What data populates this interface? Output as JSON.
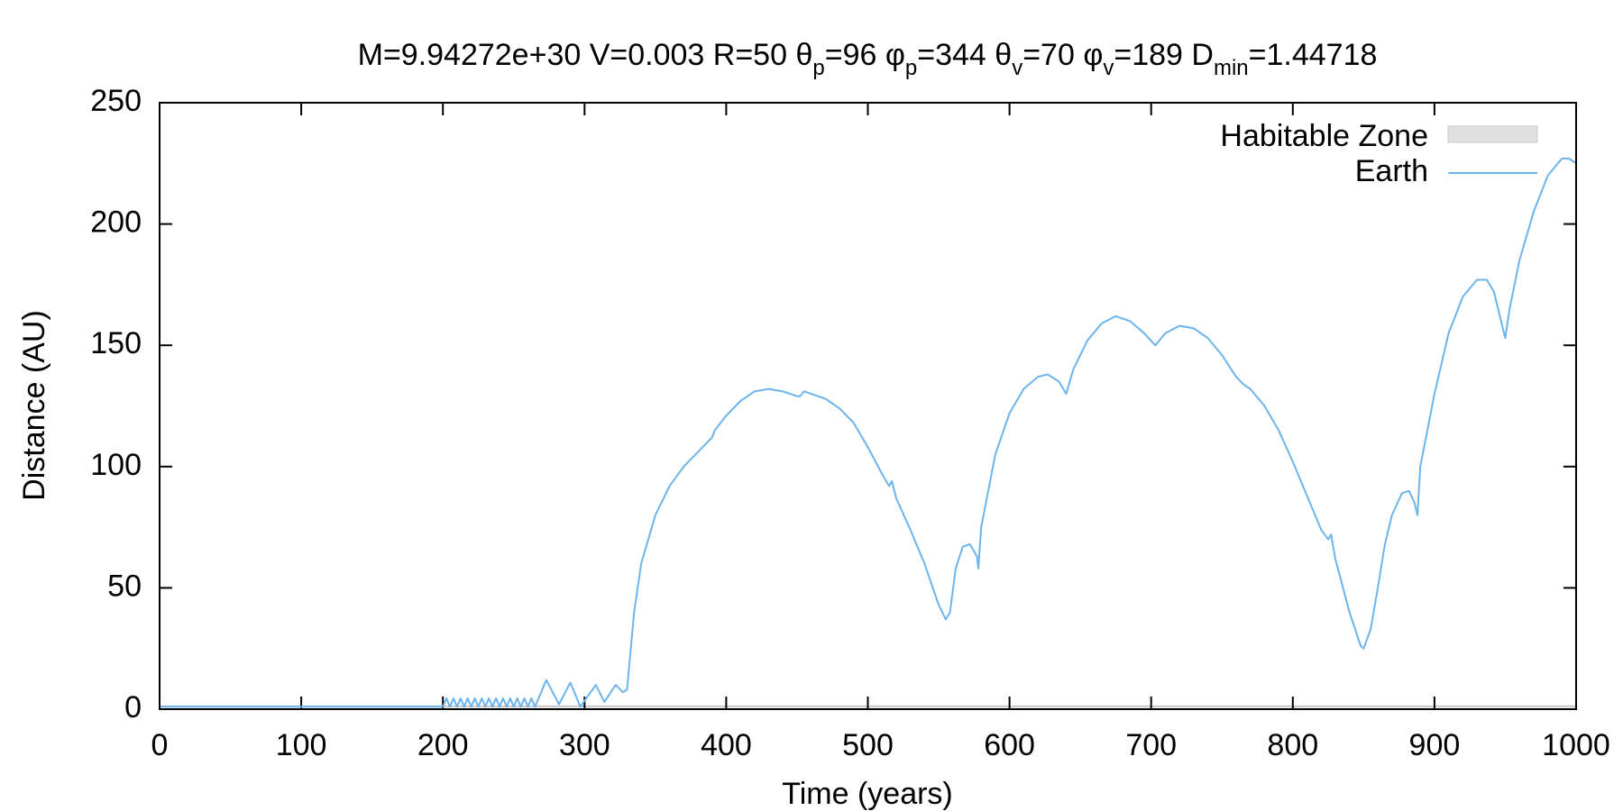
{
  "chart_data": {
    "type": "line",
    "title": [
      {
        "text": "M=9.94272e+30 V=0.003 R=50 θ"
      },
      {
        "text": "p",
        "sub": true
      },
      {
        "text": "=96 φ"
      },
      {
        "text": "p",
        "sub": true
      },
      {
        "text": "=344 θ"
      },
      {
        "text": "v",
        "sub": true
      },
      {
        "text": "=70 φ"
      },
      {
        "text": "v",
        "sub": true
      },
      {
        "text": "=189 D"
      },
      {
        "text": "min",
        "sub": true
      },
      {
        "text": "=1.44718"
      }
    ],
    "x_label": "Time (years)",
    "y_label": "Distance (AU)",
    "xlim": [
      0,
      1000
    ],
    "xticks": [
      0,
      100,
      200,
      300,
      400,
      500,
      600,
      700,
      800,
      900,
      1000
    ],
    "ylim": [
      0,
      250
    ],
    "yticks": [
      0,
      50,
      100,
      150,
      200,
      250
    ],
    "legend": "top-right",
    "band": {
      "name": "Habitable Zone",
      "color": "#e0e0e0",
      "range": [
        0.95,
        1.37
      ]
    },
    "series": [
      {
        "name": "Earth",
        "color": "#6cb4ee",
        "x": [
          0,
          100,
          200,
          202.5,
          205,
          207.5,
          210,
          212.5,
          215,
          217.5,
          220,
          222.5,
          225,
          227.5,
          230,
          232.5,
          235,
          237.5,
          240,
          242.5,
          245,
          247.5,
          250,
          252.5,
          255,
          257.5,
          260,
          262.5,
          265,
          273,
          282,
          290,
          297,
          308,
          314,
          322,
          327,
          330,
          335,
          340,
          350,
          360,
          370,
          380,
          390,
          392,
          400,
          410,
          420,
          430,
          440,
          450,
          452,
          455,
          460,
          470,
          480,
          490,
          500,
          510,
          515,
          517,
          520,
          530,
          540,
          550,
          555,
          558,
          562,
          567,
          572,
          577,
          578,
          580,
          590,
          600,
          610,
          620,
          627,
          635,
          640,
          645,
          655,
          665,
          675,
          685,
          695,
          703,
          710,
          720,
          730,
          740,
          750,
          760,
          765,
          770,
          780,
          790,
          800,
          810,
          820,
          825,
          827,
          830,
          840,
          848,
          850,
          855,
          860,
          865,
          870,
          877,
          882,
          886,
          888,
          890,
          900,
          910,
          920,
          930,
          937,
          942,
          947,
          950,
          953,
          960,
          970,
          980,
          990,
          995,
          1000
        ],
        "values": [
          1,
          1,
          1,
          4.5,
          1,
          4.5,
          1,
          4.5,
          1,
          4.5,
          1,
          4.5,
          1,
          4.5,
          1,
          4.5,
          1,
          4.5,
          1,
          4.5,
          1,
          4.5,
          1,
          4.5,
          1,
          4.5,
          1,
          4.5,
          1,
          12,
          2,
          11,
          1,
          10,
          3,
          10,
          7,
          8,
          40,
          60,
          80,
          92,
          100,
          106,
          112,
          115,
          121,
          127,
          131,
          132,
          131,
          129,
          129,
          131,
          130,
          128,
          124,
          118,
          108,
          97,
          92,
          94,
          87,
          74,
          60,
          43,
          37,
          40,
          58,
          67,
          68,
          63,
          58,
          75,
          105,
          122,
          132,
          137,
          138,
          135,
          130,
          140,
          152,
          159,
          162,
          160,
          155,
          150,
          155,
          158,
          157,
          153,
          146,
          137,
          134,
          132,
          125,
          115,
          102,
          88,
          74,
          70,
          72,
          62,
          40,
          26,
          25,
          33,
          50,
          68,
          80,
          89,
          90,
          85,
          80,
          100,
          130,
          155,
          170,
          177,
          177,
          172,
          160,
          153,
          165,
          185,
          205,
          220,
          227,
          227,
          225
        ]
      }
    ]
  }
}
